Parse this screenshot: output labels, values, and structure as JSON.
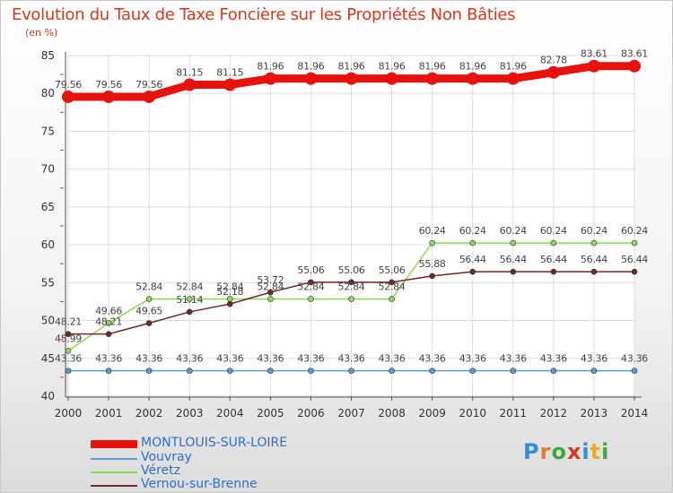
{
  "title": "Evolution du Taux de Taxe Foncière sur les Propriétés Non Bâties",
  "subtitle": "(en %)",
  "logo": {
    "letters": [
      "P",
      "r",
      "o",
      "x",
      "i",
      "t",
      "i"
    ],
    "colors": [
      "#2e8fd6",
      "#e8782a",
      "#3aa93a",
      "#d23c1e",
      "#2e8fd6",
      "#e8b020",
      "#3aa93a"
    ]
  },
  "chart_data": {
    "type": "line",
    "title": "Evolution du Taux de Taxe Foncière sur les Propriétés Non Bâties",
    "ylabel": "(en %)",
    "xlabel": "",
    "x": [
      "2000",
      "2001",
      "2002",
      "2003",
      "2004",
      "2005",
      "2006",
      "2007",
      "2008",
      "2009",
      "2010",
      "2011",
      "2012",
      "2013",
      "2014"
    ],
    "ylim": [
      40,
      85
    ],
    "yticks": [
      "40",
      "45",
      "50",
      "55",
      "60",
      "65",
      "70",
      "75",
      "80",
      "85"
    ],
    "grid": true,
    "legend": "bottom-left",
    "series": [
      {
        "name": "MONTLOUIS-SUR-LOIRE",
        "color": "#e8120c",
        "emphasis": true,
        "values": [
          79.56,
          79.56,
          79.56,
          81.15,
          81.15,
          81.96,
          81.96,
          81.96,
          81.96,
          81.96,
          81.96,
          81.96,
          82.78,
          83.61,
          83.61
        ],
        "labels": [
          "79.56",
          "79.56",
          "79.56",
          "81.15",
          "81.15",
          "81.96",
          "81.96",
          "81.96",
          "81.96",
          "81.96",
          "81.96",
          "81.96",
          "82.78",
          "83.61",
          "83.61"
        ]
      },
      {
        "name": "Vouvray",
        "color": "#5b9bd0",
        "values": [
          43.36,
          43.36,
          43.36,
          43.36,
          43.36,
          43.36,
          43.36,
          43.36,
          43.36,
          43.36,
          43.36,
          43.36,
          43.36,
          43.36,
          43.36
        ],
        "labels": [
          "43.36",
          "43.36",
          "43.36",
          "43.36",
          "43.36",
          "43.36",
          "43.36",
          "43.36",
          "43.36",
          "43.36",
          "43.36",
          "43.36",
          "43.36",
          "43.36",
          "43.36"
        ]
      },
      {
        "name": "Véretz",
        "color": "#8ed85a",
        "values": [
          45.99,
          49.66,
          52.84,
          52.84,
          52.84,
          52.84,
          52.84,
          52.84,
          52.84,
          60.24,
          60.24,
          60.24,
          60.24,
          60.24,
          60.24
        ],
        "labels": [
          "45.99",
          "49.66",
          "52.84",
          "52.84",
          "52.84",
          "52.84",
          "52.84",
          "52.84",
          "52.84",
          "60.24",
          "60.24",
          "60.24",
          "60.24",
          "60.24",
          "60.24"
        ]
      },
      {
        "name": "Vernou-sur-Brenne",
        "color": "#6e2a2a",
        "values": [
          48.21,
          48.21,
          49.65,
          51.14,
          52.18,
          53.72,
          55.06,
          55.06,
          55.06,
          55.88,
          56.44,
          56.44,
          56.44,
          56.44,
          56.44
        ],
        "labels": [
          "48.21",
          "48.21",
          "49.65",
          "51.14",
          "52.18",
          "53.72",
          "55.06",
          "55.06",
          "55.06",
          "55.88",
          "56.44",
          "56.44",
          "56.44",
          "56.44",
          "56.44"
        ]
      }
    ]
  }
}
